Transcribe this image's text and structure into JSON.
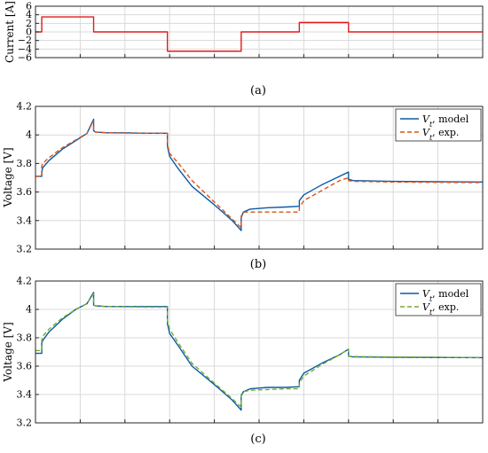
{
  "chart_data": [
    {
      "type": "line",
      "panel_label": "(a)",
      "ylabel": "Current [A]",
      "xlim": [
        0,
        1000
      ],
      "ylim": [
        -6,
        6
      ],
      "yticks": [
        -6,
        -4,
        -2,
        0,
        2,
        4,
        6
      ],
      "ytick_labels": [
        "−6",
        "−4",
        "−2",
        "0",
        "2",
        "4",
        "6"
      ],
      "series": [
        {
          "color": "#e41a1c",
          "style": "solid",
          "x": [
            0,
            14,
            14,
            130,
            130,
            295,
            295,
            460,
            460,
            590,
            590,
            700,
            700,
            1000
          ],
          "y": [
            0,
            0,
            3.5,
            3.5,
            0,
            0,
            -4.5,
            -4.5,
            0,
            0,
            2.2,
            2.2,
            0,
            0
          ]
        }
      ]
    },
    {
      "type": "line",
      "panel_label": "(b)",
      "ylabel": "Voltage [V]",
      "xlim": [
        0,
        1000
      ],
      "ylim": [
        3.2,
        4.2
      ],
      "yticks": [
        3.2,
        3.4,
        3.6,
        3.8,
        4.0,
        4.2
      ],
      "ytick_labels": [
        "3.2",
        "3.4",
        "3.6",
        "3.8",
        "4",
        "4.2"
      ],
      "legend": [
        "V_t, model",
        "V_t, exp."
      ],
      "legend_position": "top-right",
      "series": [
        {
          "name": "V_t, model",
          "color": "#0a5aa8",
          "style": "solid",
          "x": [
            0,
            14,
            14,
            16,
            30,
            60,
            90,
            115,
            130,
            130,
            134,
            160,
            200,
            250,
            295,
            295,
            300,
            320,
            350,
            400,
            440,
            460,
            460,
            465,
            480,
            520,
            560,
            590,
            590,
            600,
            640,
            680,
            700,
            700,
            710,
            800,
            900,
            1000
          ],
          "y": [
            3.71,
            3.71,
            3.74,
            3.77,
            3.82,
            3.9,
            3.96,
            4.01,
            4.11,
            4.03,
            4.02,
            4.015,
            4.015,
            4.012,
            4.012,
            3.92,
            3.85,
            3.76,
            3.64,
            3.51,
            3.4,
            3.33,
            3.42,
            3.46,
            3.48,
            3.49,
            3.495,
            3.5,
            3.54,
            3.58,
            3.65,
            3.71,
            3.74,
            3.69,
            3.68,
            3.675,
            3.672,
            3.67
          ]
        },
        {
          "name": "V_t, exp.",
          "color": "#d95319",
          "style": "dashed",
          "x": [
            0,
            14,
            14,
            16,
            30,
            60,
            90,
            115,
            130,
            130,
            134,
            160,
            200,
            250,
            295,
            295,
            300,
            320,
            350,
            400,
            440,
            460,
            460,
            465,
            480,
            520,
            560,
            590,
            590,
            600,
            640,
            680,
            700,
            700,
            710,
            800,
            900,
            1000
          ],
          "y": [
            3.71,
            3.71,
            3.78,
            3.8,
            3.84,
            3.91,
            3.965,
            4.01,
            4.1,
            4.025,
            4.02,
            4.015,
            4.013,
            4.012,
            4.012,
            3.93,
            3.87,
            3.8,
            3.68,
            3.53,
            3.41,
            3.35,
            3.43,
            3.46,
            3.46,
            3.46,
            3.46,
            3.46,
            3.49,
            3.54,
            3.61,
            3.68,
            3.7,
            3.68,
            3.675,
            3.67,
            3.668,
            3.666
          ]
        }
      ]
    },
    {
      "type": "line",
      "panel_label": "(c)",
      "ylabel": "Voltage [V]",
      "xlim": [
        0,
        1000
      ],
      "ylim": [
        3.2,
        4.2
      ],
      "yticks": [
        3.2,
        3.4,
        3.6,
        3.8,
        4.0,
        4.2
      ],
      "ytick_labels": [
        "3.2",
        "3.4",
        "3.6",
        "3.8",
        "4",
        "4.2"
      ],
      "legend": [
        "V_t, model",
        "V_t, exp."
      ],
      "legend_position": "top-right",
      "series": [
        {
          "name": "V_t, model",
          "color": "#0a5aa8",
          "style": "solid",
          "x": [
            0,
            14,
            14,
            16,
            30,
            60,
            90,
            115,
            130,
            130,
            134,
            160,
            200,
            250,
            295,
            295,
            300,
            320,
            350,
            400,
            440,
            460,
            460,
            465,
            480,
            520,
            560,
            590,
            590,
            600,
            640,
            680,
            700,
            700,
            710,
            800,
            900,
            1000
          ],
          "y": [
            3.69,
            3.69,
            3.76,
            3.78,
            3.84,
            3.93,
            4.0,
            4.04,
            4.12,
            4.03,
            4.025,
            4.02,
            4.02,
            4.02,
            4.02,
            3.9,
            3.83,
            3.74,
            3.6,
            3.47,
            3.36,
            3.29,
            3.39,
            3.42,
            3.44,
            3.45,
            3.45,
            3.455,
            3.5,
            3.55,
            3.62,
            3.68,
            3.72,
            3.67,
            3.665,
            3.662,
            3.661,
            3.66
          ]
        },
        {
          "name": "V_t, exp.",
          "color": "#77ac30",
          "style": "dashed",
          "x": [
            0,
            14,
            14,
            16,
            30,
            60,
            90,
            115,
            130,
            130,
            134,
            160,
            200,
            250,
            295,
            295,
            300,
            320,
            350,
            400,
            440,
            460,
            460,
            465,
            480,
            520,
            560,
            590,
            590,
            600,
            640,
            680,
            700,
            700,
            710,
            800,
            900,
            1000
          ],
          "y": [
            3.71,
            3.71,
            3.78,
            3.81,
            3.86,
            3.94,
            4.0,
            4.04,
            4.11,
            4.03,
            4.025,
            4.02,
            4.018,
            4.016,
            4.016,
            3.92,
            3.86,
            3.76,
            3.62,
            3.48,
            3.37,
            3.31,
            3.4,
            3.42,
            3.43,
            3.435,
            3.44,
            3.44,
            3.48,
            3.53,
            3.61,
            3.68,
            3.72,
            3.67,
            3.668,
            3.665,
            3.663,
            3.66
          ]
        }
      ]
    }
  ]
}
